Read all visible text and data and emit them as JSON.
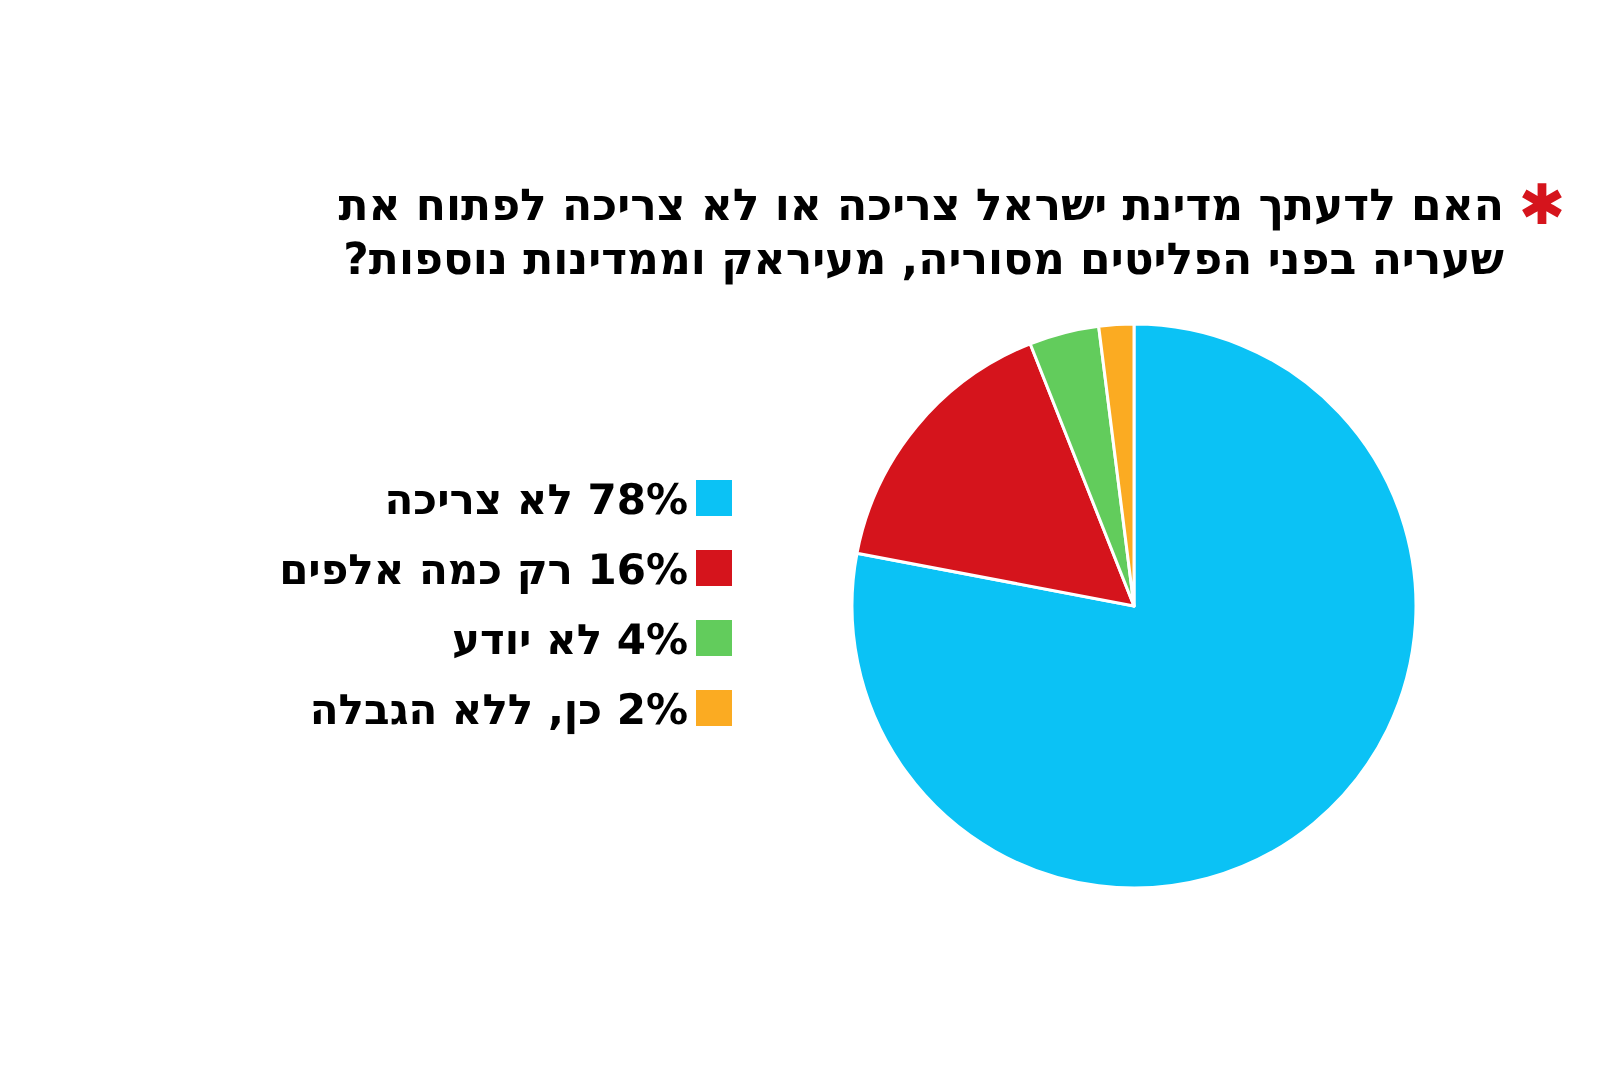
{
  "chart_data": {
    "type": "pie",
    "title": "האם לדעתך מדינת ישראל צריכה או לא צריכה לפתוח את שעריה בפני הפליטים מסוריה, מעיראק וממדינות נוספות?",
    "annotations": [
      "✱"
    ],
    "categories": [
      "78% לא צריכה",
      "16% רק כמה אלפים",
      "4% לא יודע",
      "2% כן, ללא הגבלה"
    ],
    "values": [
      78,
      16,
      4,
      2
    ],
    "colors": [
      "#0bc2f5",
      "#d5141c",
      "#62cc5c",
      "#fbab22"
    ],
    "legend": "left"
  }
}
